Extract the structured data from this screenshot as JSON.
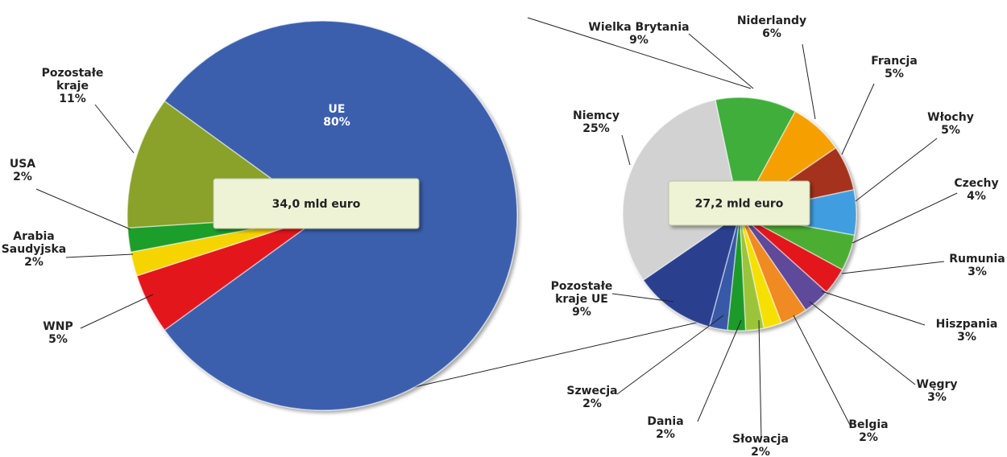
{
  "chart_data": [
    {
      "type": "pie",
      "center_label": "34,0 mld euro",
      "categories": [
        "UE",
        "WNP",
        "Arabia Saudyjska",
        "USA",
        "Pozostałe kraje"
      ],
      "values": [
        80,
        5,
        2,
        2,
        11
      ],
      "value_labels": [
        "80%",
        "5%",
        "2%",
        "2%",
        "11%"
      ],
      "colors": [
        "#3a5fad",
        "#e3141b",
        "#f5d400",
        "#1e9e2a",
        "#8aa12c"
      ]
    },
    {
      "type": "pie",
      "center_label": "27,2 mld euro",
      "categories": [
        "Wielka Brytania",
        "Niderlandy",
        "Francja",
        "Włochy",
        "Czechy",
        "Rumunia",
        "Hiszpania",
        "Węgry",
        "Belgia",
        "Słowacja",
        "Dania",
        "Szwecja",
        "Pozostałe kraje UE",
        "Niemcy"
      ],
      "values": [
        9,
        6,
        5,
        5,
        4,
        3,
        3,
        3,
        2,
        2,
        2,
        2,
        9,
        25
      ],
      "value_labels": [
        "9%",
        "6%",
        "5%",
        "5%",
        "4%",
        "3%",
        "3%",
        "3%",
        "2%",
        "2%",
        "2%",
        "2%",
        "9%",
        "25%"
      ],
      "colors": [
        "#3fae3a",
        "#f5a000",
        "#a5301b",
        "#3f9ee0",
        "#4cae30",
        "#e3141b",
        "#5e4a9a",
        "#f08a20",
        "#f5e000",
        "#9cc43a",
        "#1c9a2c",
        "#3858a8",
        "#2b3f8f",
        "#d2d2d2"
      ]
    }
  ]
}
